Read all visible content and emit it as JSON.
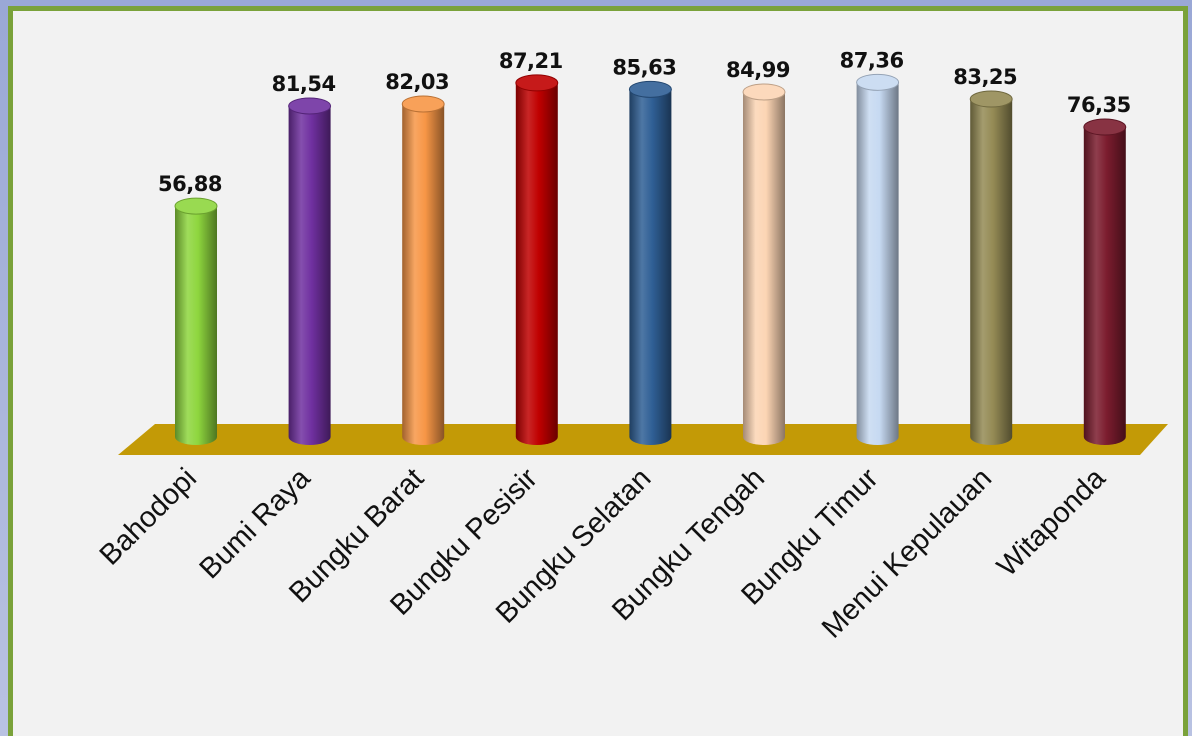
{
  "chart_data": {
    "type": "bar",
    "style": "3d-cylinder",
    "categories": [
      "Bahodopi",
      "Bumi Raya",
      "Bungku Barat",
      "Bungku Pesisir",
      "Bungku Selatan",
      "Bungku Tengah",
      "Bungku Timur",
      "Menui Kepulauan",
      "Witaponda"
    ],
    "values": [
      56.88,
      81.54,
      82.03,
      87.21,
      85.63,
      84.99,
      87.36,
      83.25,
      76.35
    ],
    "value_labels": [
      "56,88",
      "81,54",
      "82,03",
      "87,21",
      "85,63",
      "84,99",
      "87,36",
      "83,25",
      "76,35"
    ],
    "colors": [
      "#8ed63e",
      "#7030a0",
      "#f79646",
      "#c00000",
      "#2f5f95",
      "#fcd5b4",
      "#c6d9f1",
      "#948a54",
      "#7b1c2e"
    ],
    "floor_color": "#c39a06",
    "frame_color": "#7aa23a",
    "background": "#f2f2f2",
    "title": "",
    "xlabel": "",
    "ylabel": "",
    "ylim": [
      0,
      100
    ],
    "grid": false,
    "legend": "none"
  }
}
